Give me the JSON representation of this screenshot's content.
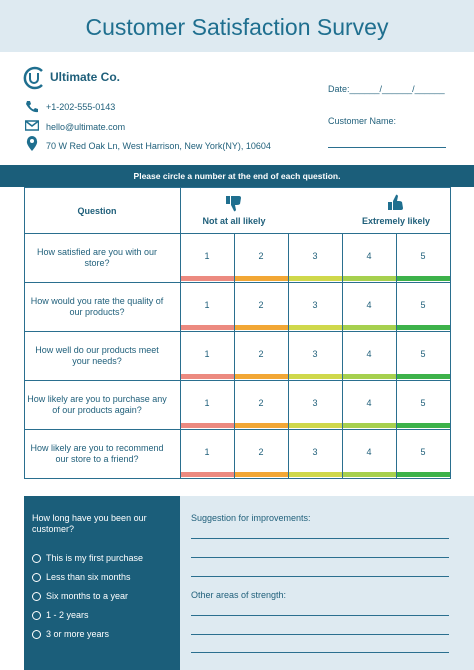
{
  "header": {
    "title": "Customer Satisfaction Survey"
  },
  "company": {
    "name": "Ultimate Co.",
    "phone": "+1-202-555-0143",
    "email": "hello@ultimate.com",
    "address": "70 W Red Oak Ln, West Harrison, New York(NY), 10604"
  },
  "customer_fields": {
    "date": "Date:______/______/______",
    "name": "Customer Name:"
  },
  "table": {
    "instruction": "Please circle a number at the end of each question.",
    "question_header": "Question",
    "low_label": "Not at all likely",
    "high_label": "Extremely likely",
    "scale": [
      1,
      2,
      3,
      4,
      5
    ],
    "rows": [
      "How satisfied are you with our store?",
      "How would you rate the quality of our products?",
      "How well do our products meet your needs?",
      "How likely are you to purchase any of our products again?",
      "How likely are you to recommend our store to a friend?"
    ]
  },
  "tenure": {
    "question": "How long have you been our customer?",
    "options": [
      "This is my first purchase",
      "Less than six months",
      "Six months to a year",
      "1 - 2 years",
      "3 or more years"
    ]
  },
  "feedback": {
    "suggestions": "Suggestion for improvements:",
    "strengths": "Other areas of strength:"
  }
}
